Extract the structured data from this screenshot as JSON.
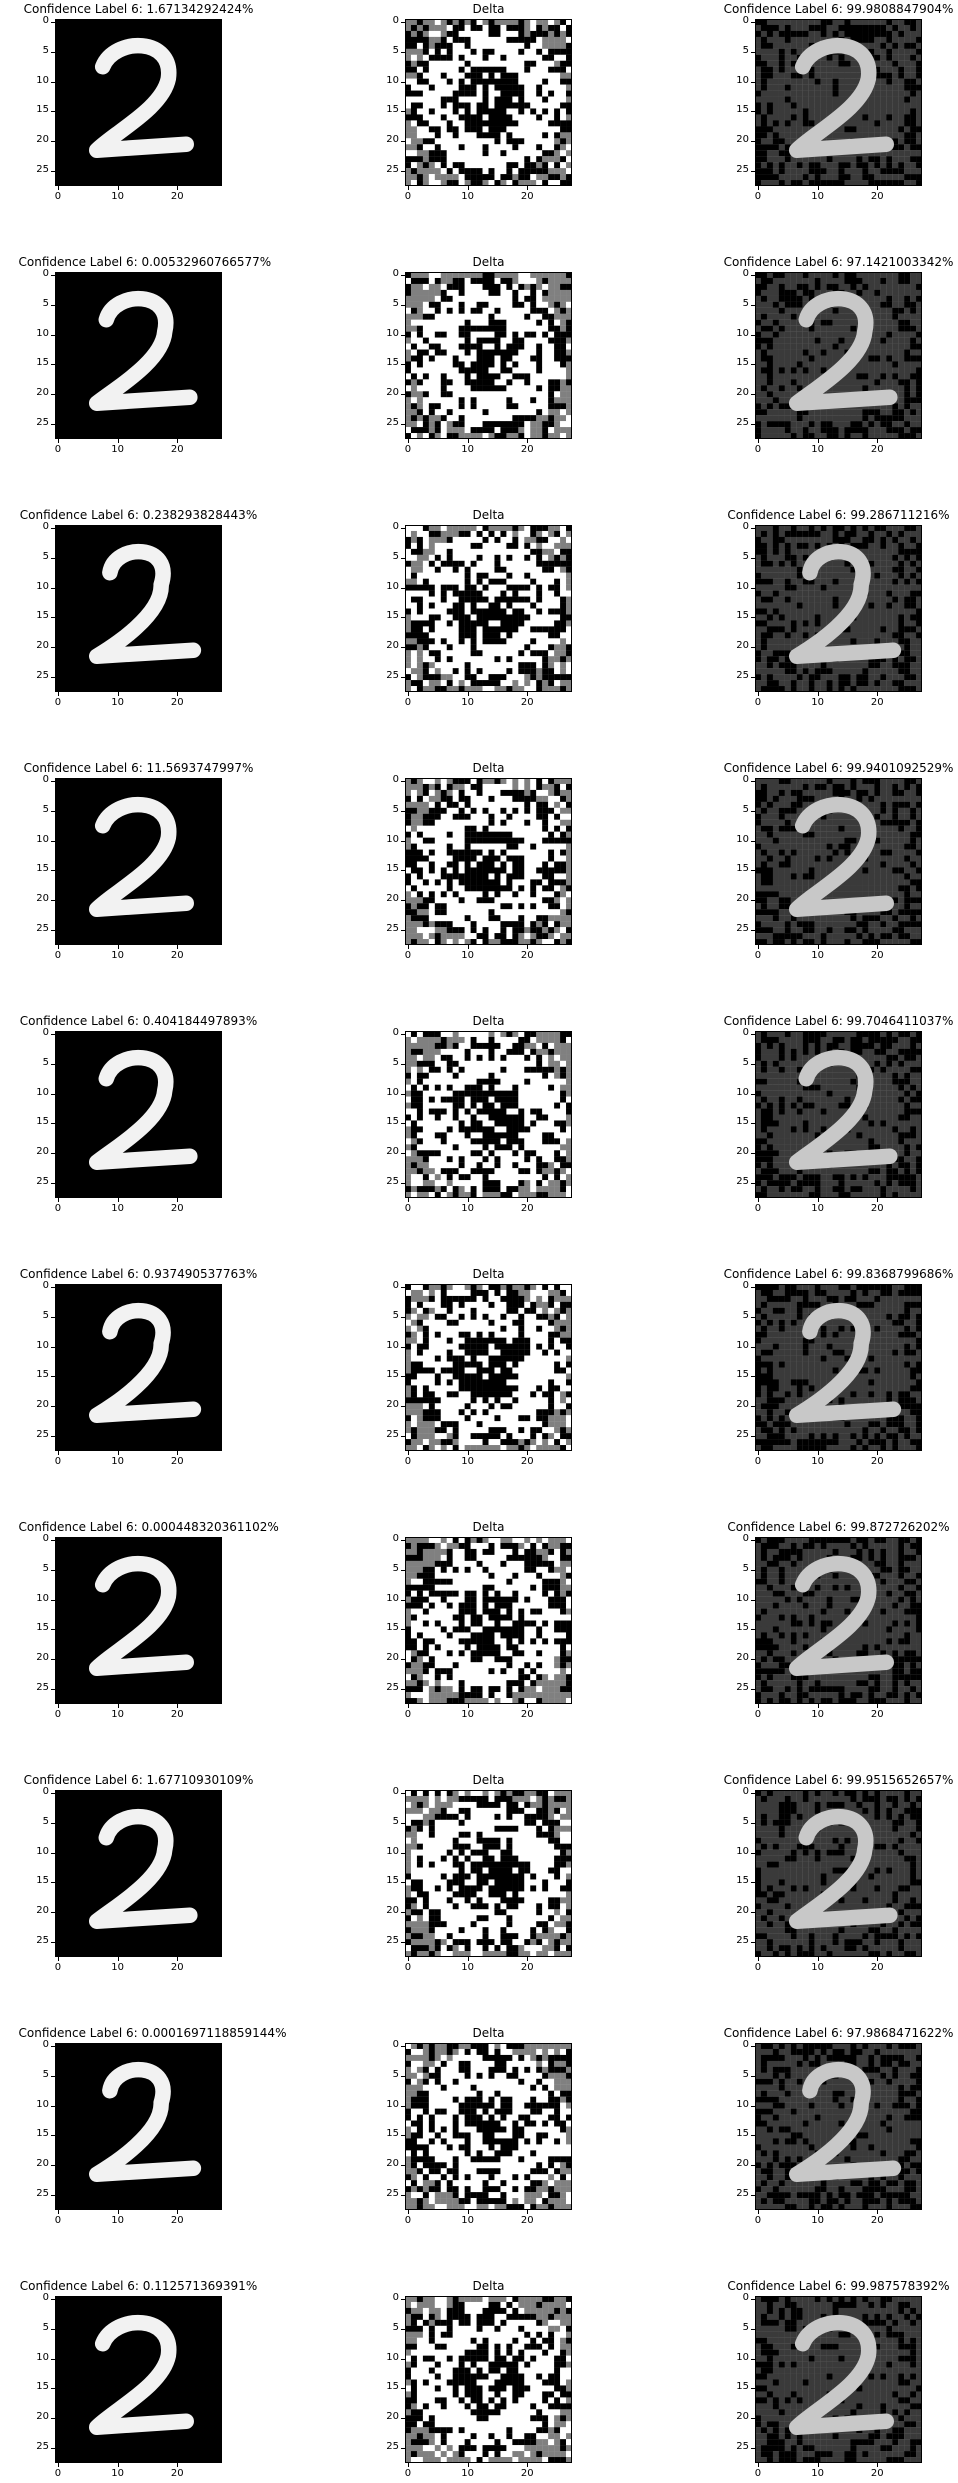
{
  "figure": {
    "rows": [
      {
        "original_title": "Confidence Label 6: 1.67134292424%",
        "delta_title": "Delta",
        "adversarial_title": "Confidence Label 6: 99.9808847904%",
        "digit": 2,
        "digit_confidence_pct": 1.67134292424,
        "adv_confidence_pct": 99.9808847904
      },
      {
        "original_title": "Confidence Label 6: 0.00532960766577%",
        "delta_title": "Delta",
        "adversarial_title": "Confidence Label 6: 97.1421003342%",
        "digit": 2,
        "digit_confidence_pct": 0.00532960766577,
        "adv_confidence_pct": 97.1421003342
      },
      {
        "original_title": "Confidence Label 6: 0.238293828443%",
        "delta_title": "Delta",
        "adversarial_title": "Confidence Label 6: 99.286711216%",
        "digit": 2,
        "digit_confidence_pct": 0.238293828443,
        "adv_confidence_pct": 99.286711216
      },
      {
        "original_title": "Confidence Label 6: 11.5693747997%",
        "delta_title": "Delta",
        "adversarial_title": "Confidence Label 6: 99.9401092529%",
        "digit": 2,
        "digit_confidence_pct": 11.5693747997,
        "adv_confidence_pct": 99.9401092529
      },
      {
        "original_title": "Confidence Label 6: 0.404184497893%",
        "delta_title": "Delta",
        "adversarial_title": "Confidence Label 6: 99.7046411037%",
        "digit": 2,
        "digit_confidence_pct": 0.404184497893,
        "adv_confidence_pct": 99.7046411037
      },
      {
        "original_title": "Confidence Label 6: 0.937490537763%",
        "delta_title": "Delta",
        "adversarial_title": "Confidence Label 6: 99.8368799686%",
        "digit": 2,
        "digit_confidence_pct": 0.937490537763,
        "adv_confidence_pct": 99.8368799686
      },
      {
        "original_title": "Confidence Label 6: 0.000448320361102%",
        "delta_title": "Delta",
        "adversarial_title": "Confidence Label 6: 99.872726202%",
        "digit": 2,
        "digit_confidence_pct": 0.000448320361102,
        "adv_confidence_pct": 99.872726202
      },
      {
        "original_title": "Confidence Label 6: 1.67710930109%",
        "delta_title": "Delta",
        "adversarial_title": "Confidence Label 6: 99.9515652657%",
        "digit": 2,
        "digit_confidence_pct": 1.67710930109,
        "adv_confidence_pct": 99.9515652657
      },
      {
        "original_title": "Confidence Label 6: 0.0001697118859144%",
        "delta_title": "Delta",
        "adversarial_title": "Confidence Label 6: 97.9868471622%",
        "digit": 2,
        "digit_confidence_pct": 0.0001697118859144,
        "adv_confidence_pct": 97.9868471622
      },
      {
        "original_title": "Confidence Label 6: 0.112571369391%",
        "delta_title": "Delta",
        "adversarial_title": "Confidence Label 6: 99.987578392%",
        "digit": 2,
        "digit_confidence_pct": 0.112571369391,
        "adv_confidence_pct": 99.987578392
      }
    ],
    "x_ticks": [
      "0",
      "10",
      "20"
    ],
    "y_ticks": [
      "0",
      "5",
      "10",
      "15",
      "20",
      "25"
    ],
    "colors": {
      "background": "#000000",
      "stroke": "#f2f2f2",
      "delta_light": "#ffffff",
      "delta_dark": "#000000",
      "delta_mid": "#808080",
      "adv_bg": "#3a3a3a"
    }
  }
}
